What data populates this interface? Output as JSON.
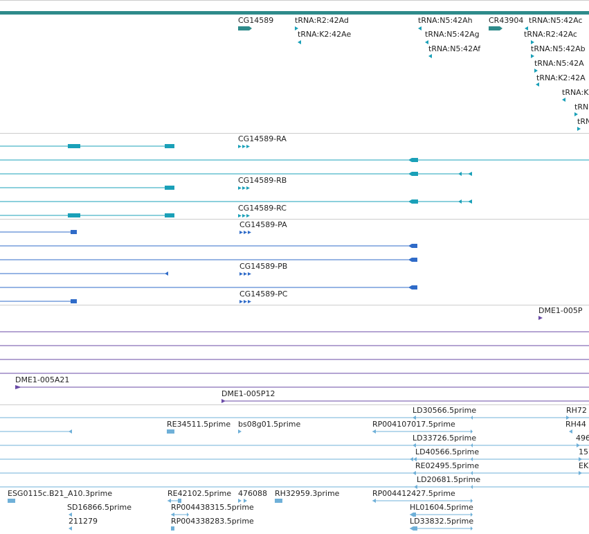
{
  "colors": {
    "gene": "#2e8b8b",
    "transcript": "#1aa0b8",
    "protein": "#2f6bc8",
    "clone": "#6a4aa6",
    "est": "#6fb0d8",
    "divider": "#cccccc"
  },
  "tracks": {
    "genes": {
      "labels": [
        "CG14589",
        "tRNA:R2:42Ad",
        "tRNA:K2:42Ae",
        "tRNA:N5:42Ah",
        "tRNA:N5:42Ag",
        "tRNA:N5:42Af",
        "CR43904",
        "tRNA:N5:42Ac",
        "tRNA:R2:42Ac",
        "tRNA:N5:42Ab",
        "tRNA:N5:42A",
        "tRNA:K2:42A",
        "tRNA:K",
        "tRN",
        "tRN"
      ]
    },
    "transcripts": {
      "labels": [
        "CG14589-RA",
        "CG14589-RB",
        "CG14589-RC"
      ]
    },
    "proteins": {
      "labels": [
        "CG14589-PA",
        "CG14589-PB",
        "CG14589-PC"
      ]
    },
    "clones": {
      "labels": [
        "DME1-005P",
        "DME1-005A21",
        "DME1-005P12"
      ]
    },
    "ests": {
      "labels": [
        "LD30566.5prime",
        "RH72",
        "RE34511.5prime",
        "bs08g01.5prime",
        "RP004107017.5prime",
        "RH44",
        "LD33726.5prime",
        "496",
        "LD40566.5prime",
        "15",
        "RE02495.5prime",
        "EK",
        "LD20681.5prime",
        "ESG0115c.B21_A10.3prime",
        "RE42102.5prime",
        "476088",
        "RH32959.3prime",
        "RP004412427.5prime",
        "SD16866.5prime",
        "RP004438315.5prime",
        "HL01604.5prime",
        "211279",
        "RP004338283.5prime",
        "LD33832.5prime"
      ]
    }
  }
}
